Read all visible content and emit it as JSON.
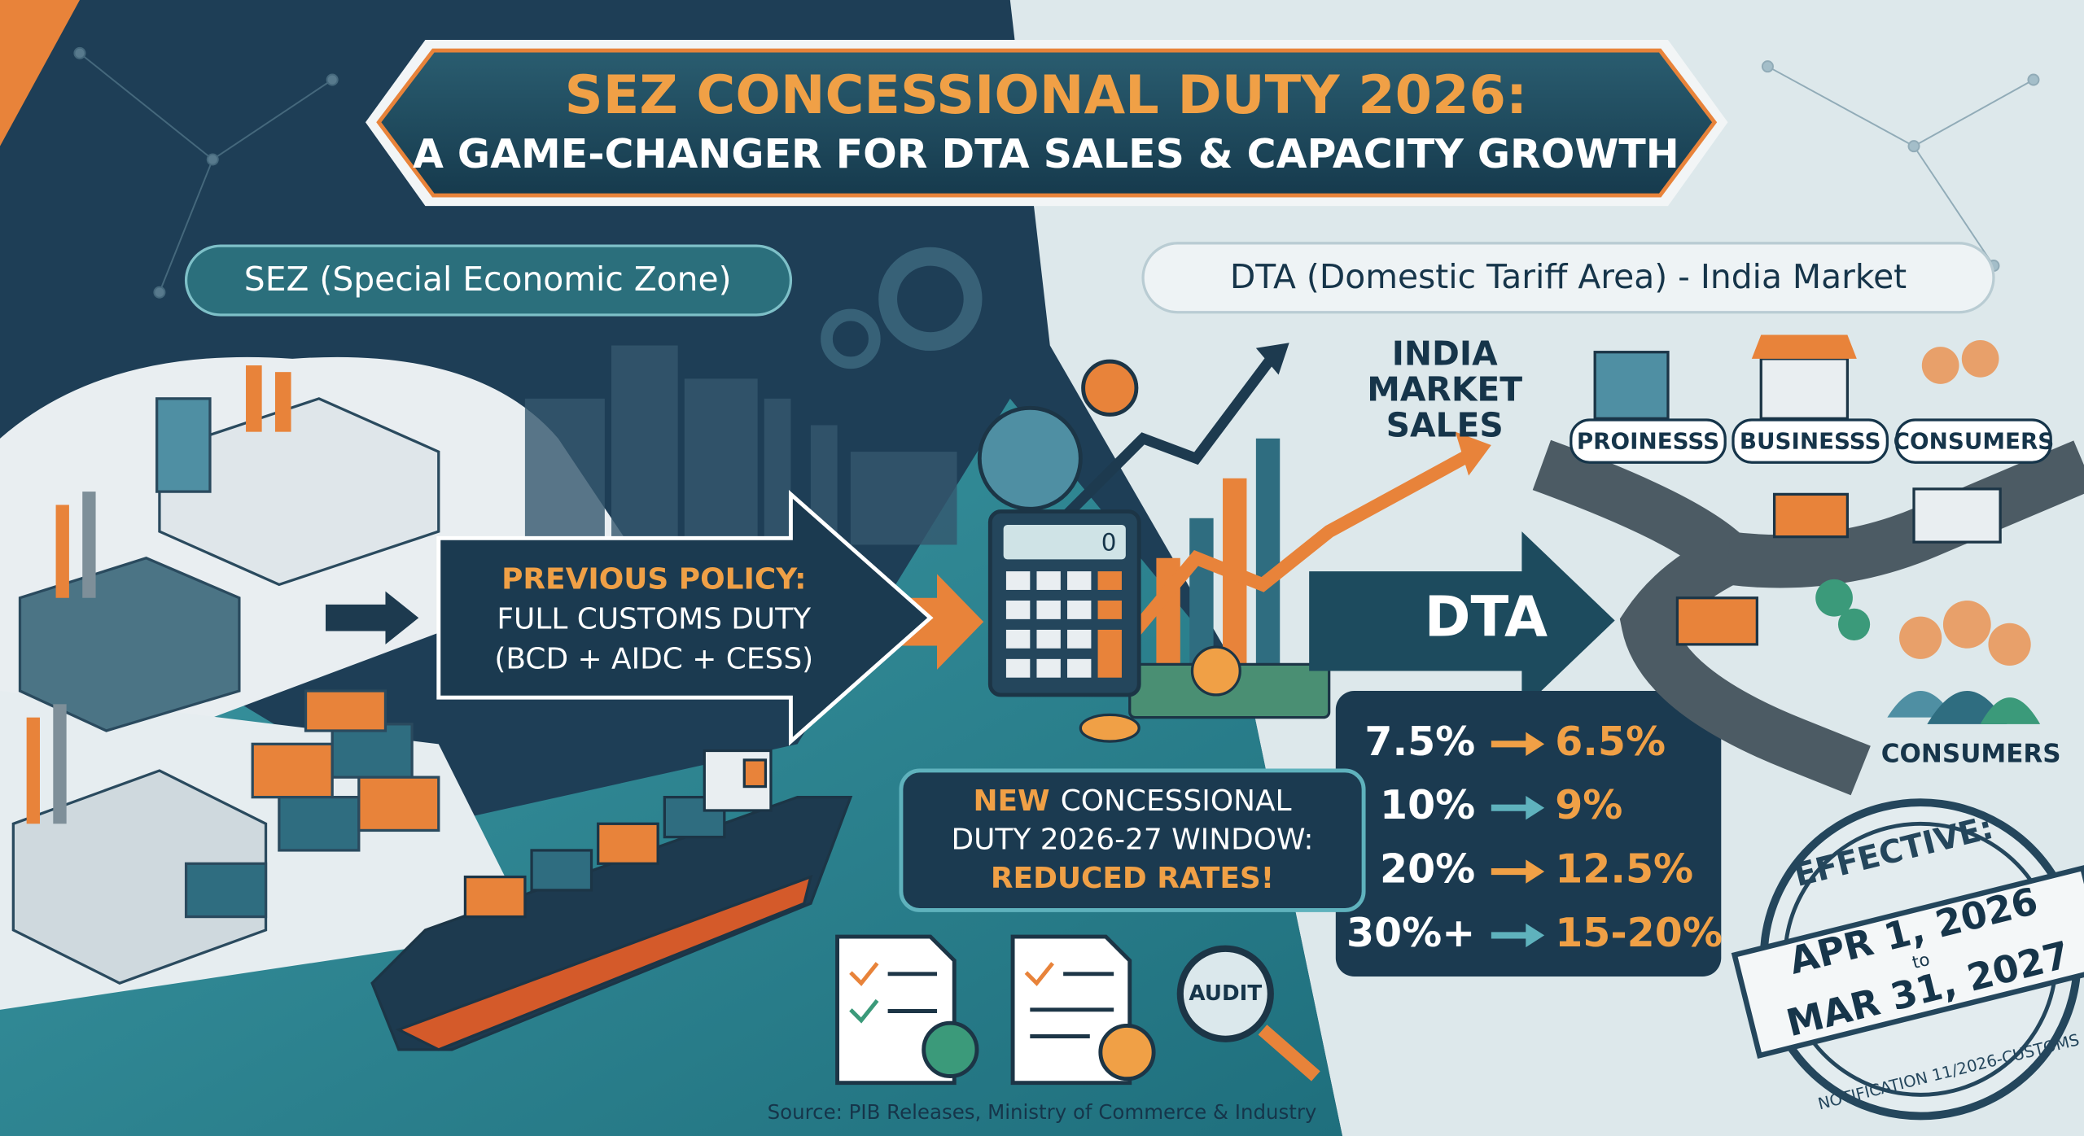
{
  "header": {
    "title": "SEZ CONCESSIONAL DUTY 2026:",
    "subtitle": "A GAME-CHANGER FOR DTA SALES & CAPACITY GROWTH"
  },
  "sez": {
    "label": "SEZ (Special Economic Zone)"
  },
  "dta": {
    "label": "DTA (Domestic Tariff Area) - India Market",
    "sales_label": [
      "INDIA",
      "MARKET",
      "SALES"
    ],
    "arrow_label": "DTA",
    "icons": [
      "PROINESSS",
      "BUSINESSS",
      "CONSUMERS"
    ],
    "consumers_label": "CONSUMERS"
  },
  "previous_policy": {
    "lines": [
      "PREVIOUS POLICY:",
      "FULL CUSTOMS DUTY",
      "(BCD + AIDC + CESS)"
    ]
  },
  "new_policy": {
    "highlight": "NEW",
    "line1_rest": "CONCESSIONAL",
    "line2": "DUTY 2026-27 WINDOW:",
    "line3": "REDUCED RATES!"
  },
  "rates": [
    {
      "from": "7.5%",
      "to": "6.5%"
    },
    {
      "from": "10%",
      "to": "9%"
    },
    {
      "from": "20%",
      "to": "12.5%"
    },
    {
      "from": "30%+",
      "to": "15-20%"
    }
  ],
  "calculator_display": "0",
  "audit": "AUDIT",
  "stamp": {
    "top": "EFFECTIVE:",
    "start": "APR 1, 2026",
    "joiner": "to",
    "end": "MAR 31, 2027",
    "notification": "NOTIFICATION 11/2026-CUSTOMS"
  },
  "source": "Source: PIB Releases, Ministry of Commerce & Industry"
}
